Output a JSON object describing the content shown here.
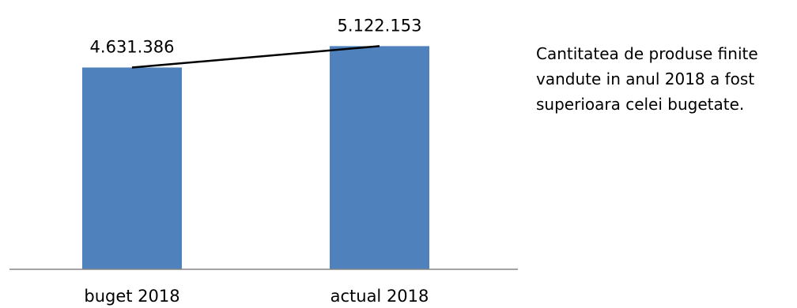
{
  "chart_data": {
    "type": "bar",
    "categories": [
      "buget 2018",
      "actual 2018"
    ],
    "values": [
      4631386,
      5122153
    ],
    "value_labels": [
      "4.631.386",
      "5.122.153"
    ],
    "ylim": [
      0,
      5800000
    ],
    "grid": false,
    "legend": "none",
    "trend_line": true,
    "colors": {
      "bar": "#4f81bd",
      "axis": "#868686",
      "trend": "#000000",
      "text": "#000000"
    }
  },
  "note": {
    "lines": [
      "Cantitatea de produse finite",
      "vandute in anul 2018 a fost",
      "superioara celei bugetate."
    ]
  }
}
